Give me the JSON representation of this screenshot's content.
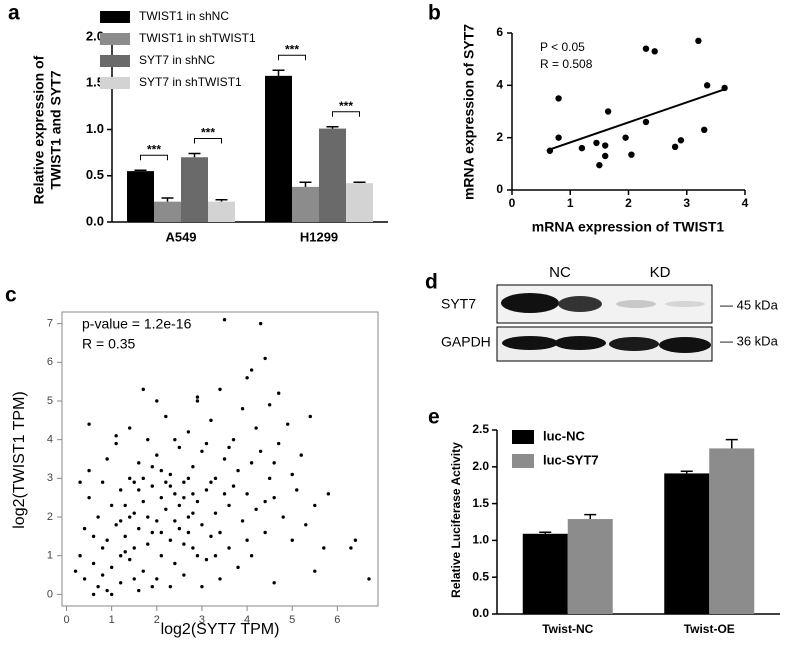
{
  "chart_data": [
    {
      "panel": "a",
      "type": "bar",
      "categories": [
        "A549",
        "H1299"
      ],
      "ylabel": [
        "Relative expression of",
        "TWIST1 and SYT7"
      ],
      "ylim": [
        0,
        2
      ],
      "yticks": [
        {
          "value": 0,
          "label": "0.0"
        },
        {
          "value": 0.5,
          "label": "0.5"
        },
        {
          "value": 1,
          "label": "1.0"
        },
        {
          "value": 1.5,
          "label": "1.5"
        },
        {
          "value": 2,
          "label": "2.0"
        }
      ],
      "series": [
        {
          "name": "TWIST1 in shNC",
          "color": "#000000",
          "values": [
            0.55,
            1.58
          ],
          "errors": [
            0.01,
            0.06
          ]
        },
        {
          "name": "TWIST1 in shTWIST1",
          "color": "#8c8c8c",
          "values": [
            0.22,
            0.38
          ],
          "errors": [
            0.04,
            0.05
          ]
        },
        {
          "name": "SYT7 in shNC",
          "color": "#6a6a6a",
          "values": [
            0.7,
            1.01
          ],
          "errors": [
            0.04,
            0.02
          ]
        },
        {
          "name": "SYT7 in shTWIST1",
          "color": "#d3d3d3",
          "values": [
            0.22,
            0.42
          ],
          "errors": [
            0.02,
            0.01
          ]
        }
      ],
      "annotations": [
        "***",
        "***",
        "***",
        "***"
      ]
    },
    {
      "panel": "b",
      "type": "scatter",
      "xlabel": "mRNA expression of TWIST1",
      "ylabel": "mRNA expression of SYT7",
      "x": [
        0.65,
        0.8,
        0.8,
        1.2,
        1.45,
        1.5,
        1.6,
        1.6,
        1.65,
        1.95,
        2.05,
        2.3,
        2.3,
        2.45,
        2.8,
        2.9,
        3.2,
        3.3,
        3.35,
        3.65
      ],
      "y": [
        1.5,
        3.5,
        2.0,
        1.6,
        1.8,
        0.95,
        1.3,
        1.7,
        3.0,
        2.0,
        1.35,
        2.6,
        5.4,
        5.3,
        1.65,
        1.9,
        5.7,
        2.3,
        4.0,
        3.9
      ],
      "xlim": [
        0,
        4
      ],
      "ylim": [
        0,
        6
      ],
      "xticks": [
        0,
        1,
        2,
        3,
        4
      ],
      "yticks": [
        0,
        2,
        4,
        6
      ],
      "trendline": {
        "x": [
          0.65,
          3.65
        ],
        "y": [
          1.55,
          3.85
        ]
      },
      "color": "#000000",
      "annotations": [
        "P < 0.05",
        "R = 0.508"
      ]
    },
    {
      "panel": "c",
      "type": "scatter",
      "xlabel": "log2(SYT7 TPM)",
      "ylabel": "log2(TWIST1 TPM)",
      "x": [
        0.3,
        0.4,
        0.5,
        0.5,
        0.6,
        0.6,
        0.7,
        0.7,
        0.8,
        0.8,
        0.9,
        0.9,
        1.0,
        1.0,
        1.1,
        1.1,
        1.2,
        1.2,
        1.3,
        1.3,
        1.4,
        1.4,
        1.5,
        1.5,
        1.6,
        1.6,
        1.7,
        1.7,
        1.8,
        1.8,
        1.9,
        1.9,
        2.0,
        2.0,
        2.1,
        2.1,
        2.2,
        2.2,
        2.3,
        2.3,
        2.4,
        2.4,
        2.5,
        2.5,
        2.6,
        2.6,
        2.7,
        2.7,
        2.8,
        2.8,
        2.9,
        2.9,
        3.0,
        3.0,
        3.1,
        3.1,
        3.2,
        3.2,
        3.3,
        3.3,
        3.4,
        3.4,
        3.5,
        3.5,
        3.6,
        3.6,
        3.7,
        3.7,
        3.8,
        3.8,
        3.9,
        3.9,
        4.0,
        4.0,
        4.1,
        4.1,
        4.2,
        4.2,
        4.3,
        4.3,
        4.4,
        4.4,
        4.5,
        4.5,
        4.6,
        4.6,
        4.7,
        4.7,
        4.8,
        4.9,
        5.0,
        5.0,
        5.1,
        5.2,
        5.3,
        5.4,
        5.5,
        5.5,
        5.7,
        5.8,
        6.3,
        6.4,
        6.7,
        0.2,
        0.3,
        0.4,
        0.5,
        0.6,
        0.8,
        1.0,
        1.1,
        1.2,
        1.3,
        1.4,
        1.5,
        1.6,
        1.7,
        1.8,
        1.9,
        2.0,
        2.1,
        2.2,
        2.3,
        2.4,
        2.5,
        2.6,
        2.7,
        2.8,
        2.9,
        3.0,
        3.1,
        3.2,
        3.3,
        1.7,
        2.0,
        2.9,
        4.1,
        4.6,
        1.6,
        0.9,
        1.5,
        2.4,
        2.6,
        2.1,
        1.9,
        2.3,
        2.8,
        3.5,
        3.4,
        3.6,
        4.0,
        4.4,
        1.4,
        1.2,
        2.7
      ],
      "y": [
        1.0,
        0.4,
        2.5,
        3.2,
        0.8,
        1.5,
        0.2,
        2.0,
        0.5,
        1.2,
        3.5,
        0.1,
        2.3,
        0.7,
        1.8,
        4.1,
        0.3,
        2.7,
        1.1,
        1.5,
        0.9,
        3.0,
        2.1,
        0.4,
        1.7,
        3.4,
        0.6,
        2.4,
        1.3,
        4.0,
        2.8,
        0.2,
        1.9,
        3.6,
        2.5,
        1.0,
        4.6,
        2.2,
        1.4,
        3.1,
        0.8,
        2.6,
        3.8,
        1.7,
        2.9,
        0.5,
        4.2,
        2.0,
        1.2,
        3.3,
        2.4,
        5.0,
        1.8,
        3.7,
        0.9,
        2.7,
        4.5,
        1.5,
        3.0,
        2.1,
        5.3,
        0.4,
        7.1,
        3.5,
        2.3,
        1.2,
        4.0,
        2.8,
        3.2,
        0.7,
        4.8,
        1.9,
        5.6,
        2.6,
        3.4,
        1.0,
        4.3,
        2.2,
        7.0,
        3.7,
        6.1,
        1.6,
        3.0,
        4.9,
        2.5,
        0.3,
        3.9,
        5.2,
        2.0,
        4.4,
        3.1,
        1.4,
        2.7,
        3.6,
        1.8,
        4.6,
        0.6,
        2.3,
        1.2,
        2.6,
        1.2,
        1.4,
        0.4,
        0.6,
        2.9,
        1.7,
        4.4,
        0.0,
        2.9,
        0.0,
        3.9,
        1.0,
        2.3,
        4.3,
        1.2,
        0.1,
        3.0,
        2.0,
        1.6,
        0.4,
        3.2,
        2.9,
        0.2,
        4.0,
        2.3,
        1.3,
        3.0,
        2.6,
        1.0,
        0.2,
        3.9,
        2.9,
        1.0,
        5.3,
        5.0,
        5.1,
        5.8,
        3.4,
        2.7,
        1.4,
        2.9,
        1.9,
        2.5,
        1.6,
        3.3,
        2.8,
        2.1,
        2.6,
        1.6,
        3.8,
        1.4,
        2.4,
        2.0,
        1.9,
        1.6
      ],
      "xlim": [
        -0.1,
        6.9
      ],
      "ylim": [
        -0.3,
        7.3
      ],
      "xticks": [
        0,
        1,
        2,
        3,
        4,
        5,
        6
      ],
      "yticks": [
        0,
        1,
        2,
        3,
        4,
        5,
        6,
        7
      ],
      "color": "#000000",
      "annotations": [
        "p-value = 1.2e-16",
        "R = 0.35"
      ]
    },
    {
      "panel": "e",
      "type": "bar",
      "categories": [
        "Twist-NC",
        "Twist-OE"
      ],
      "ylabel": [
        "Relative Luciferase Activity"
      ],
      "ylim": [
        0,
        2.5
      ],
      "yticks": [
        {
          "value": 0,
          "label": "0.0"
        },
        {
          "value": 0.5,
          "label": "0.5"
        },
        {
          "value": 1,
          "label": "1.0"
        },
        {
          "value": 1.5,
          "label": "1.5"
        },
        {
          "value": 2,
          "label": "2.0"
        },
        {
          "value": 2.5,
          "label": "2.5"
        }
      ],
      "series": [
        {
          "name": "luc-NC",
          "color": "#000000",
          "values": [
            1.09,
            1.91
          ],
          "errors": [
            0.02,
            0.03
          ]
        },
        {
          "name": "luc-SYT7",
          "color": "#8c8c8c",
          "values": [
            1.29,
            2.25
          ],
          "errors": [
            0.06,
            0.12
          ]
        }
      ],
      "annotations": []
    }
  ],
  "blot": {
    "panel": "d",
    "columns": [
      "NC",
      "KD"
    ],
    "rows": [
      "SYT7",
      "GAPDH"
    ],
    "sizes": [
      "— 45 kDa",
      "— 36 kDa"
    ]
  }
}
